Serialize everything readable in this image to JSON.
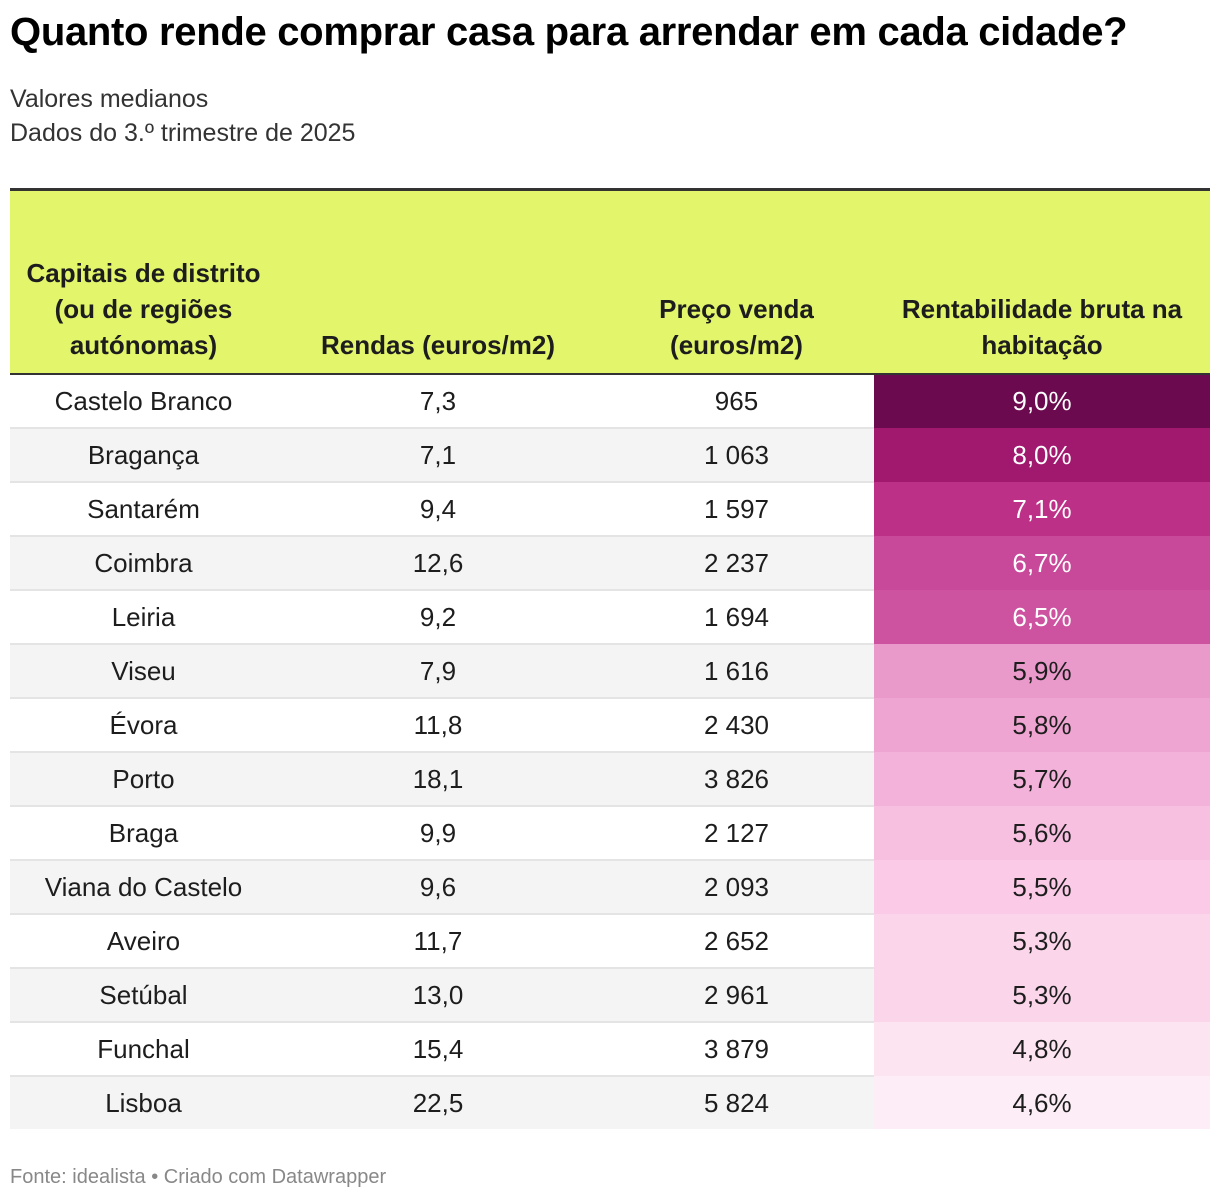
{
  "title": "Quanto rende comprar casa para arrendar em cada cidade?",
  "subtitle_lines": [
    "Valores medianos",
    "Dados do 3.º trimestre de 2025"
  ],
  "footer": {
    "source_label": "Fonte:",
    "source": "idealista",
    "separator": "•",
    "credit": "Criado com Datawrapper"
  },
  "chart_data": {
    "type": "table",
    "columns": [
      "Capitais de distrito (ou de regiões autónomas)",
      "Rendas (euros/m2)",
      "Preço venda (euros/m2)",
      "Rentabilidade bruta na habitação"
    ],
    "heatmap_column": 3,
    "rows": [
      {
        "city": "Castelo Branco",
        "rent": "7,3",
        "price": "965",
        "yield": "9,0%",
        "yield_value": 9.0,
        "cell_color": "#6b0a4f",
        "text_color": "#ffffff"
      },
      {
        "city": "Bragança",
        "rent": "7,1",
        "price": "1 063",
        "yield": "8,0%",
        "yield_value": 8.0,
        "cell_color": "#a1186f",
        "text_color": "#ffffff"
      },
      {
        "city": "Santarém",
        "rent": "9,4",
        "price": "1 597",
        "yield": "7,1%",
        "yield_value": 7.1,
        "cell_color": "#bd3087",
        "text_color": "#ffffff"
      },
      {
        "city": "Coimbra",
        "rent": "12,6",
        "price": "2 237",
        "yield": "6,7%",
        "yield_value": 6.7,
        "cell_color": "#c8489a",
        "text_color": "#ffffff"
      },
      {
        "city": "Leiria",
        "rent": "9,2",
        "price": "1 694",
        "yield": "6,5%",
        "yield_value": 6.5,
        "cell_color": "#cd52a0",
        "text_color": "#ffffff"
      },
      {
        "city": "Viseu",
        "rent": "7,9",
        "price": "1 616",
        "yield": "5,9%",
        "yield_value": 5.9,
        "cell_color": "#e99acb",
        "text_color": "#1d1d1d"
      },
      {
        "city": "Évora",
        "rent": "11,8",
        "price": "2 430",
        "yield": "5,8%",
        "yield_value": 5.8,
        "cell_color": "#eea5d2",
        "text_color": "#1d1d1d"
      },
      {
        "city": "Porto",
        "rent": "18,1",
        "price": "3 826",
        "yield": "5,7%",
        "yield_value": 5.7,
        "cell_color": "#f3b2d9",
        "text_color": "#1d1d1d"
      },
      {
        "city": "Braga",
        "rent": "9,9",
        "price": "2 127",
        "yield": "5,6%",
        "yield_value": 5.6,
        "cell_color": "#f7bfe0",
        "text_color": "#1d1d1d"
      },
      {
        "city": "Viana do Castelo",
        "rent": "9,6",
        "price": "2 093",
        "yield": "5,5%",
        "yield_value": 5.5,
        "cell_color": "#facae6",
        "text_color": "#1d1d1d"
      },
      {
        "city": "Aveiro",
        "rent": "11,7",
        "price": "2 652",
        "yield": "5,3%",
        "yield_value": 5.3,
        "cell_color": "#fbd6eb",
        "text_color": "#1d1d1d"
      },
      {
        "city": "Setúbal",
        "rent": "13,0",
        "price": "2 961",
        "yield": "5,3%",
        "yield_value": 5.3,
        "cell_color": "#fbd6eb",
        "text_color": "#1d1d1d"
      },
      {
        "city": "Funchal",
        "rent": "15,4",
        "price": "3 879",
        "yield": "4,8%",
        "yield_value": 4.8,
        "cell_color": "#fce4f1",
        "text_color": "#1d1d1d"
      },
      {
        "city": "Lisboa",
        "rent": "22,5",
        "price": "5 824",
        "yield": "4,6%",
        "yield_value": 4.6,
        "cell_color": "#fdedf6",
        "text_color": "#1d1d1d"
      }
    ]
  }
}
